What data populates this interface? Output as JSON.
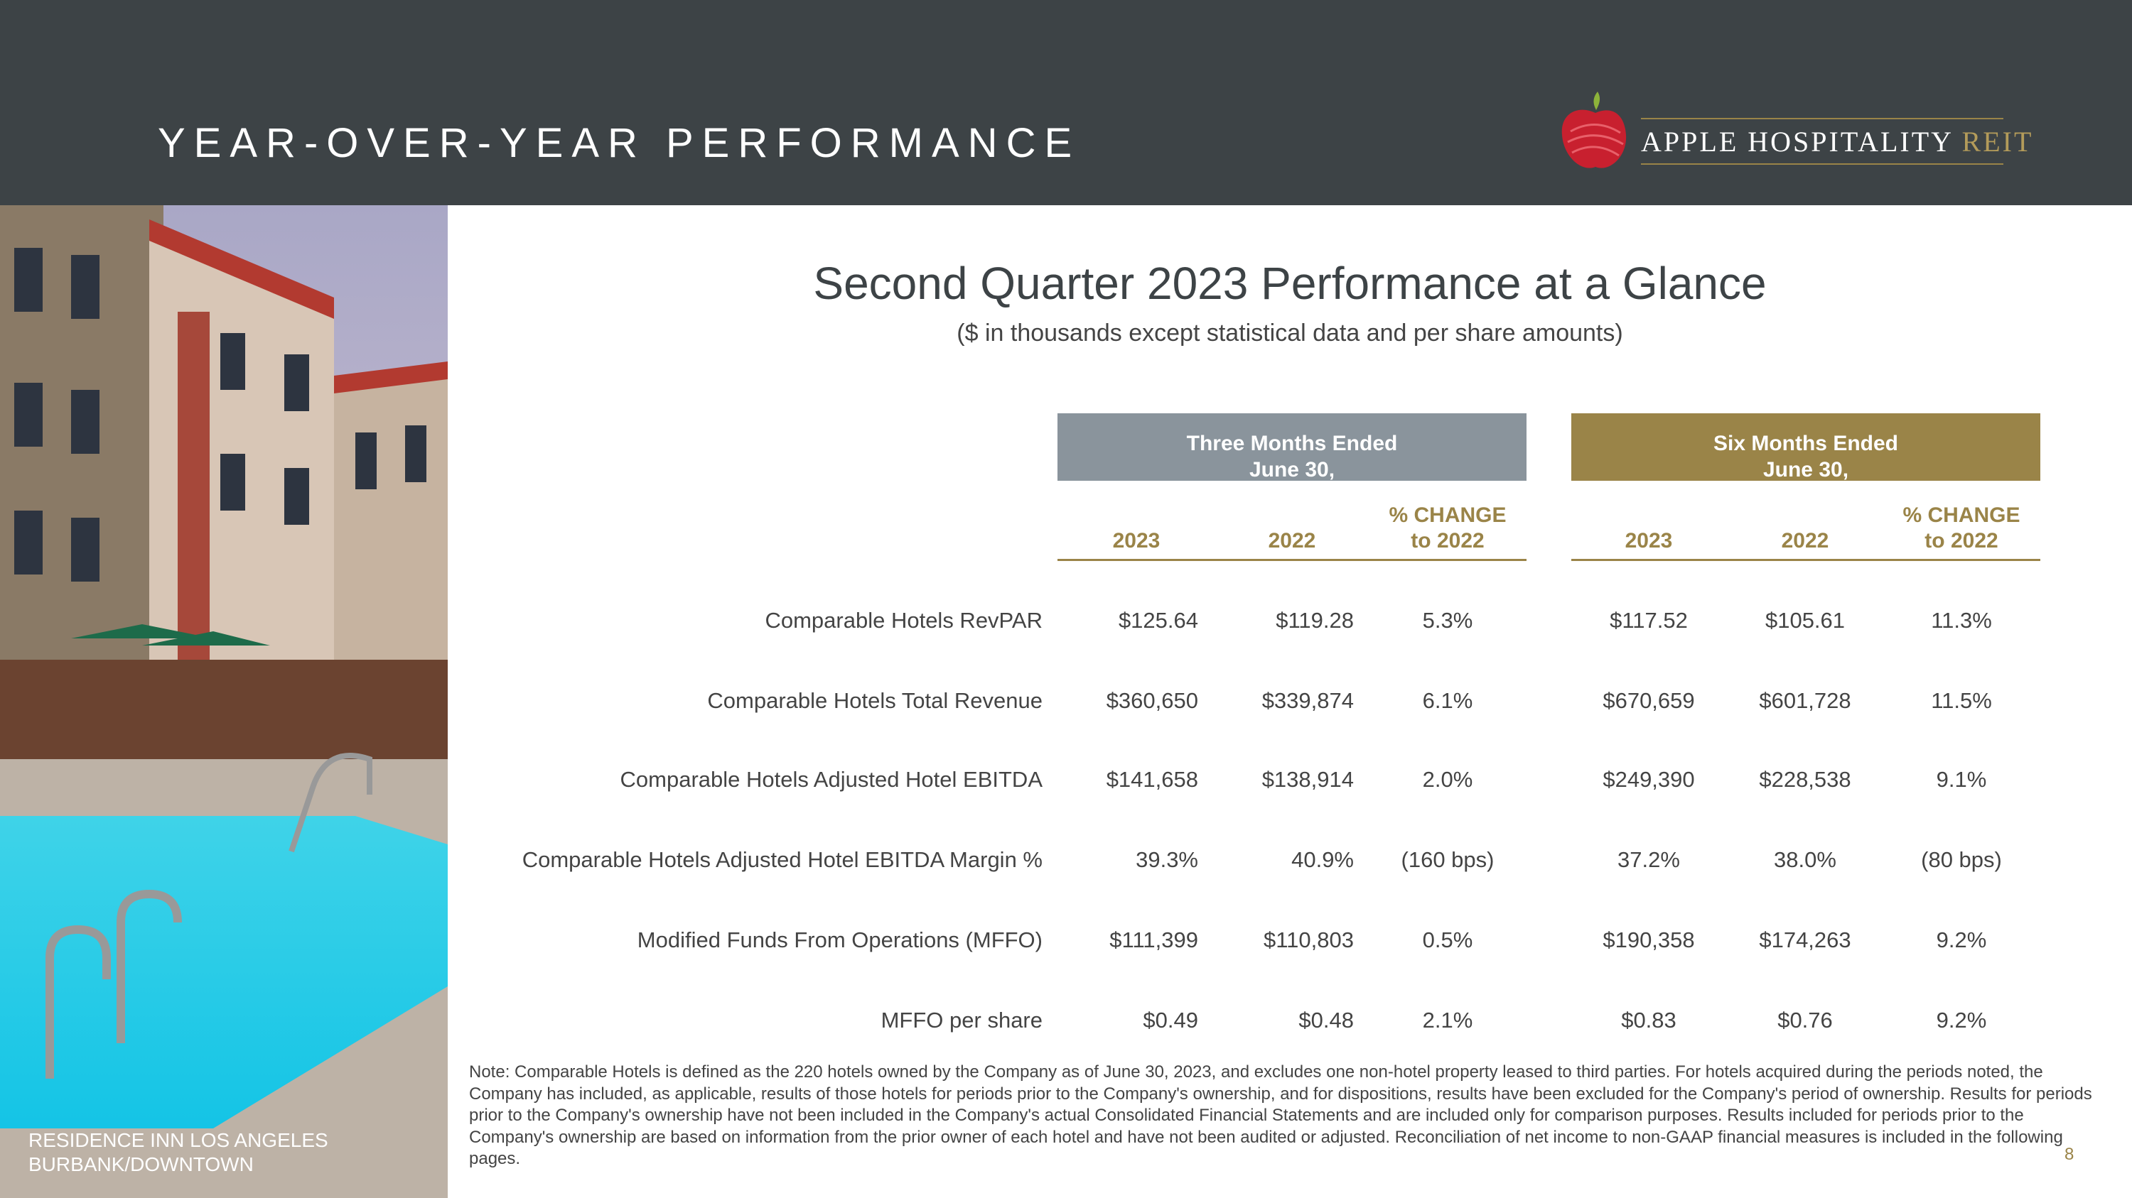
{
  "header": {
    "title": "YEAR-OVER-YEAR PERFORMANCE"
  },
  "logo": {
    "name": "APPLE HOSPITALITY",
    "suffix": "REIT"
  },
  "heading": {
    "title": "Second Quarter 2023 Performance at a Glance",
    "subtitle": "($ in thousands except statistical data and per share amounts)"
  },
  "table": {
    "groups": [
      {
        "title_lines": [
          "Three Months Ended",
          "June 30,"
        ],
        "columns": [
          [
            "2023"
          ],
          [
            "2022"
          ],
          [
            "% CHANGE",
            "to 2022"
          ]
        ]
      },
      {
        "title_lines": [
          "Six Months Ended",
          "June 30,"
        ],
        "columns": [
          [
            "2023"
          ],
          [
            "2022"
          ],
          [
            "% CHANGE",
            "to 2022"
          ]
        ]
      }
    ],
    "rows": [
      {
        "label": "Comparable Hotels RevPAR",
        "values": [
          "$125.64",
          "$119.28",
          "5.3%",
          "$117.52",
          "$105.61",
          "11.3%"
        ]
      },
      {
        "label": "Comparable Hotels Total Revenue",
        "values": [
          "$360,650",
          "$339,874",
          "6.1%",
          "$670,659",
          "$601,728",
          "11.5%"
        ]
      },
      {
        "label": "Comparable Hotels Adjusted Hotel EBITDA",
        "values": [
          "$141,658",
          "$138,914",
          "2.0%",
          "$249,390",
          "$228,538",
          "9.1%"
        ]
      },
      {
        "label": "Comparable Hotels Adjusted Hotel EBITDA Margin %",
        "values": [
          "39.3%",
          "40.9%",
          "(160 bps)",
          "37.2%",
          "38.0%",
          "(80 bps)"
        ]
      },
      {
        "label": "Modified Funds From Operations (MFFO)",
        "values": [
          "$111,399",
          "$110,803",
          "0.5%",
          "$190,358",
          "$174,263",
          "9.2%"
        ]
      },
      {
        "label": "MFFO per share",
        "values": [
          "$0.49",
          "$0.48",
          "2.1%",
          "$0.83",
          "$0.76",
          "9.2%"
        ]
      }
    ]
  },
  "note": "Note:  Comparable Hotels is defined as the 220 hotels owned by the Company as of June 30, 2023, and excludes one non-hotel property leased to third parties. For hotels acquired during the periods noted, the Company has included, as applicable, results of those hotels for periods prior to the Company's ownership, and for dispositions, results have been excluded for the Company's period of ownership. Results for periods prior to the Company's ownership have not been included in the Company's actual Consolidated Financial Statements and are included only for comparison purposes. Results included for periods prior to the Company's ownership are based on information from the prior owner of each hotel and have not been audited or adjusted. Reconciliation of net income to non-GAAP financial measures is included in the following pages.",
  "photo_caption": [
    "RESIDENCE INN LOS ANGELES",
    "BURBANK/DOWNTOWN"
  ],
  "page_number": "8"
}
